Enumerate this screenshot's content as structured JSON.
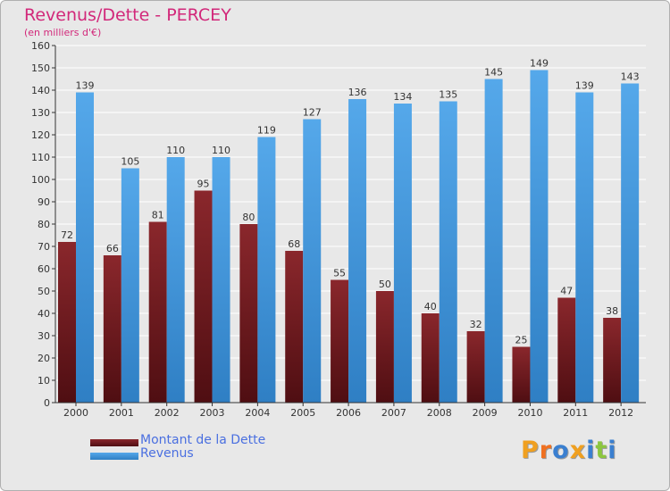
{
  "colors": {
    "title": "#d2287a",
    "debt": "#7a1f23",
    "revenue": "#4a9de0",
    "legend_text": "#4a6fe0",
    "grid": "#ffffff",
    "background": "#e8e8e8"
  },
  "logo": {
    "text": "Proxiti",
    "letter_colors": [
      "#f0a020",
      "#f07020",
      "#3a7fd0",
      "#f0a020",
      "#3a7fd0",
      "#8cc63f",
      "#3a7fd0"
    ]
  },
  "chart_data": {
    "type": "bar",
    "title": "Revenus/Dette - PERCEY",
    "subtitle": "(en milliers d'€)",
    "xlabel": "",
    "ylabel": "",
    "ylim": [
      0,
      160
    ],
    "ytick_step": 10,
    "grid": true,
    "legend_position": "bottom-left",
    "categories": [
      "2000",
      "2001",
      "2002",
      "2003",
      "2004",
      "2005",
      "2006",
      "2007",
      "2008",
      "2009",
      "2010",
      "2011",
      "2012"
    ],
    "series": [
      {
        "name": "Montant de la Dette",
        "values": [
          72,
          66,
          81,
          95,
          80,
          68,
          55,
          50,
          40,
          32,
          25,
          47,
          38
        ]
      },
      {
        "name": "Revenus",
        "values": [
          139,
          105,
          110,
          110,
          119,
          127,
          136,
          134,
          135,
          145,
          149,
          139,
          143
        ]
      }
    ]
  }
}
